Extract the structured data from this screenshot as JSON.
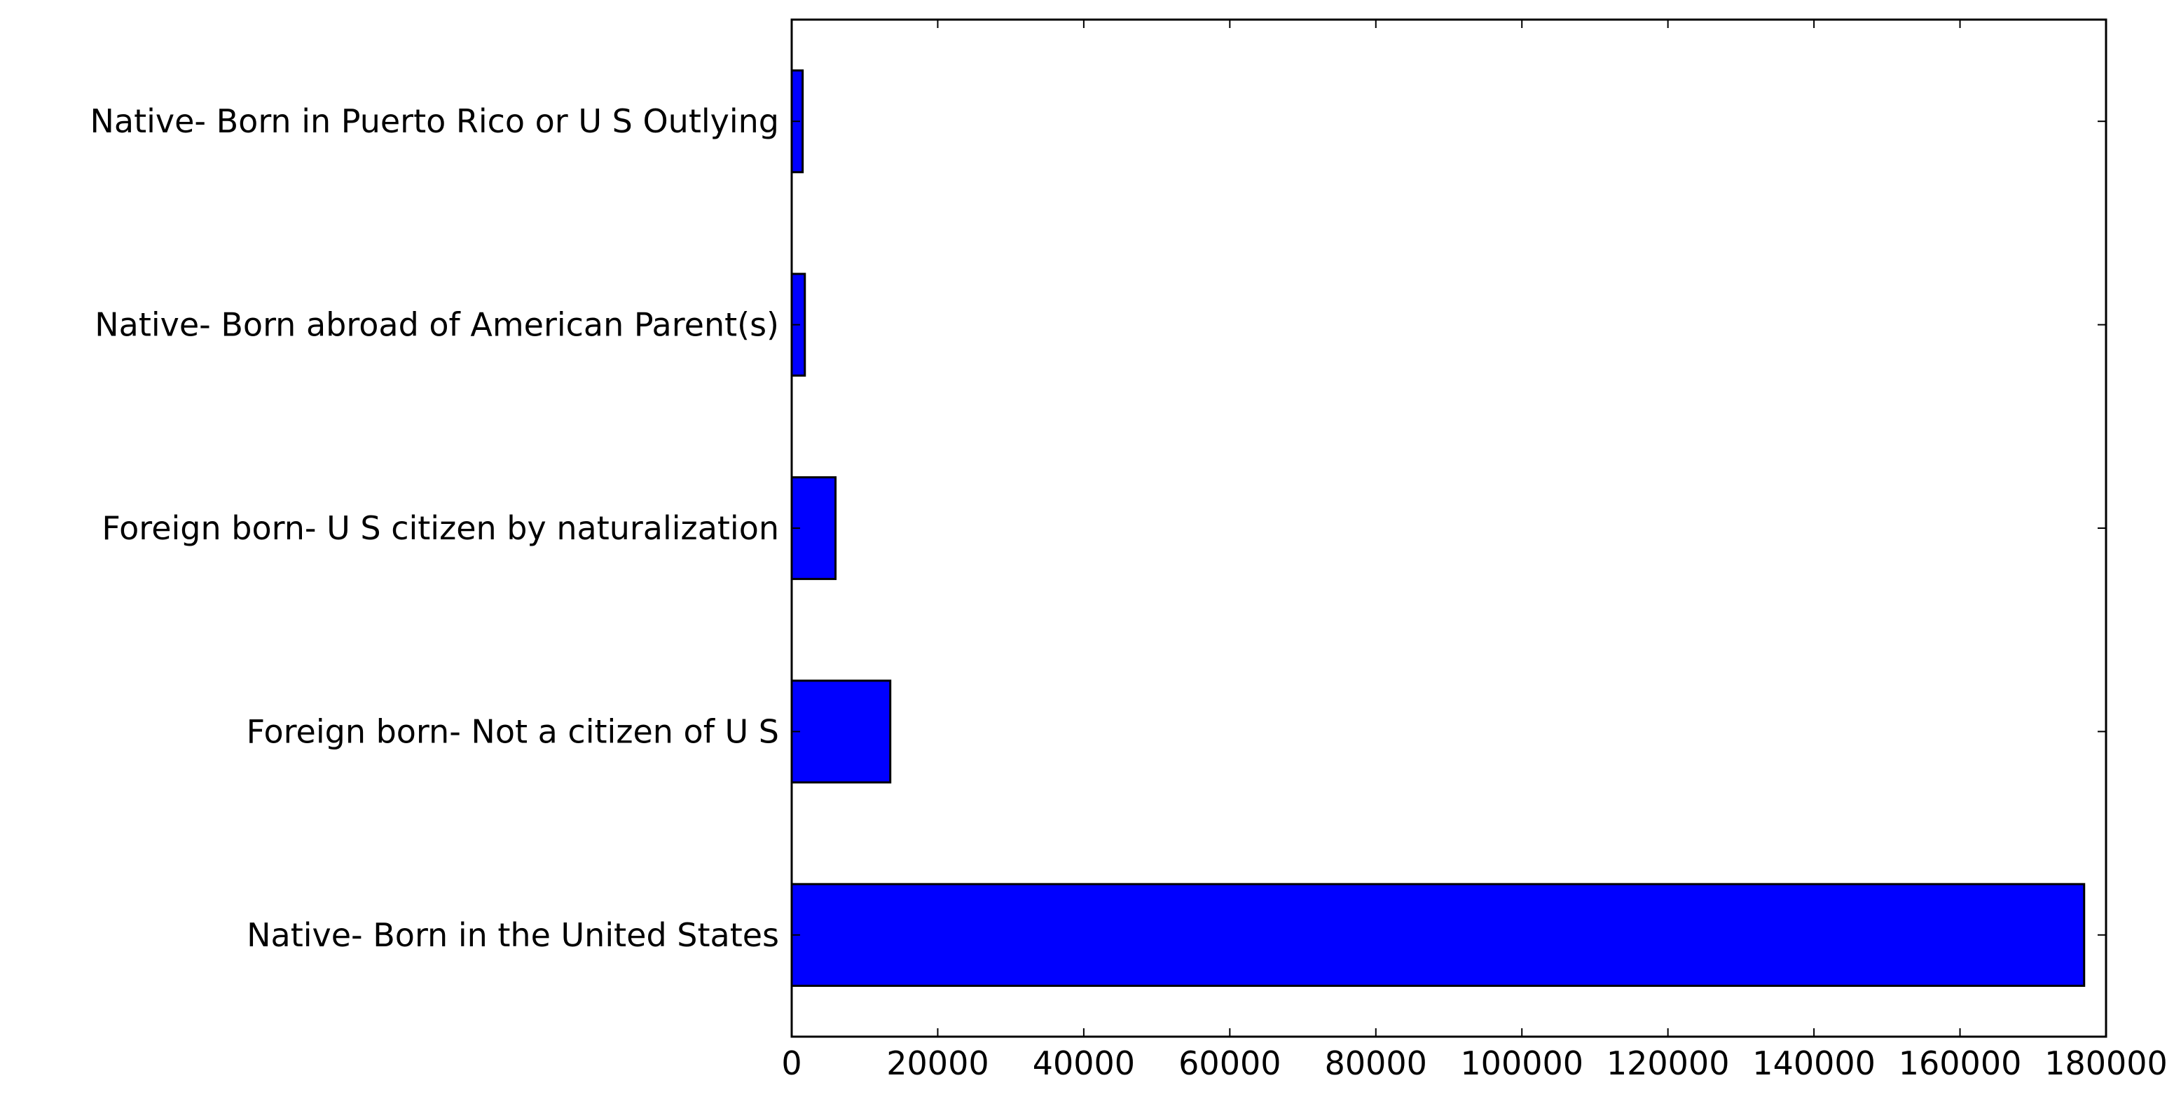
{
  "chart_data": {
    "type": "bar",
    "orientation": "horizontal",
    "title": "",
    "xlabel": "",
    "ylabel": "",
    "categories": [
      "Native- Born in Puerto Rico or U S Outlying",
      "Native- Born abroad of American Parent(s)",
      "Foreign born- U S citizen by naturalization",
      "Foreign born- Not a citizen of U S",
      "Native- Born in the United States"
    ],
    "values": [
      1500,
      1800,
      6000,
      13500,
      177000
    ],
    "xlim": [
      0,
      180000
    ],
    "xticks": [
      0,
      20000,
      40000,
      60000,
      80000,
      100000,
      120000,
      140000,
      160000,
      180000
    ],
    "xtick_labels": [
      "0",
      "20000",
      "40000",
      "60000",
      "80000",
      "100000",
      "120000",
      "140000",
      "160000",
      "180000"
    ],
    "bar_color": "#0000ff",
    "edge_color": "#000000",
    "grid": false,
    "legend": false
  }
}
